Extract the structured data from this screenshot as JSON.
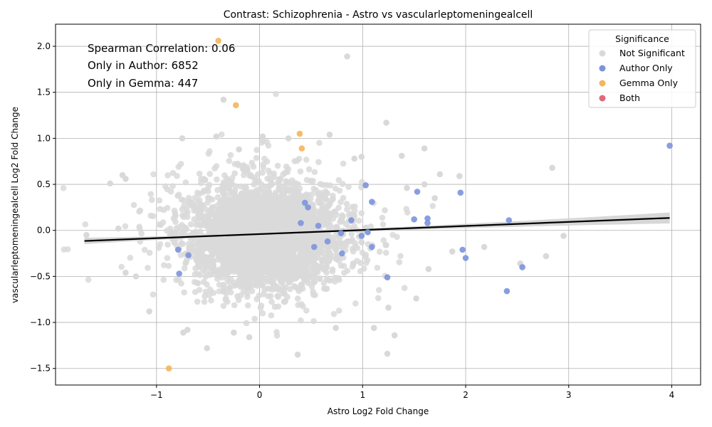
{
  "chart_data": {
    "type": "scatter",
    "title": "Contrast: Schizophrenia - Astro vs vascularleptomeningealcell",
    "xlabel": "Astro Log2 Fold Change",
    "ylabel": "vascularleptomeningealcell Log2 Fold Change",
    "xlim": [
      -1.98,
      4.28
    ],
    "ylim": [
      -1.68,
      2.24
    ],
    "xticks": [
      -1,
      0,
      1,
      2,
      3,
      4
    ],
    "yticks": [
      -1.5,
      -1.0,
      -0.5,
      0.0,
      0.5,
      1.0,
      1.5,
      2.0
    ],
    "xtick_labels": [
      "−1",
      "0",
      "1",
      "2",
      "3",
      "4"
    ],
    "ytick_labels": [
      "−1.5",
      "−1.0",
      "−0.5",
      "0.0",
      "0.5",
      "1.0",
      "1.5",
      "2.0"
    ],
    "grid": true,
    "annotations": [
      "Spearman Correlation: 0.06",
      "Only in Author: 6852",
      "Only in Gemma: 447"
    ],
    "legend": {
      "title": "Significance",
      "placement": "top-right",
      "entries": [
        {
          "label": "Not Significant",
          "color": "#d9d9d9"
        },
        {
          "label": "Author Only",
          "color": "#7b93dd"
        },
        {
          "label": "Gemma Only",
          "color": "#f5b55a"
        },
        {
          "label": "Both",
          "color": "#de6b7a"
        }
      ]
    },
    "regression": {
      "x": [
        -1.7,
        3.98
      ],
      "y": [
        -0.115,
        0.135
      ],
      "ci_halfwidth_ends": [
        0.035,
        0.06
      ],
      "ci_halfwidth_center": 0.012,
      "color": "#000000",
      "band_color": "#d3d3d3"
    },
    "series": [
      {
        "name": "Author Only",
        "color": "#7b93dd",
        "points": [
          [
            3.98,
            0.92
          ],
          [
            2.42,
            0.11
          ],
          [
            2.4,
            -0.66
          ],
          [
            2.55,
            -0.4
          ],
          [
            1.97,
            -0.21
          ],
          [
            2.0,
            -0.3
          ],
          [
            1.95,
            0.41
          ],
          [
            1.63,
            0.13
          ],
          [
            1.63,
            0.08
          ],
          [
            1.53,
            0.42
          ],
          [
            1.5,
            0.12
          ],
          [
            1.24,
            -0.51
          ],
          [
            1.09,
            0.31
          ],
          [
            1.09,
            -0.18
          ],
          [
            1.03,
            0.49
          ],
          [
            1.05,
            -0.02
          ],
          [
            0.99,
            -0.06
          ],
          [
            0.89,
            0.11
          ],
          [
            0.8,
            -0.25
          ],
          [
            0.79,
            -0.03
          ],
          [
            0.66,
            -0.12
          ],
          [
            0.57,
            0.05
          ],
          [
            0.53,
            -0.18
          ],
          [
            0.47,
            0.25
          ],
          [
            0.44,
            0.3
          ],
          [
            0.4,
            0.08
          ],
          [
            -0.69,
            -0.27
          ],
          [
            -0.78,
            -0.47
          ],
          [
            -0.79,
            -0.21
          ]
        ]
      },
      {
        "name": "Gemma Only",
        "color": "#f5b55a",
        "points": [
          [
            -0.4,
            2.06
          ],
          [
            -0.23,
            1.36
          ],
          [
            0.39,
            1.05
          ],
          [
            0.41,
            0.89
          ],
          [
            -0.88,
            -1.5
          ]
        ]
      }
    ],
    "not_significant_outliers": [
      [
        0.85,
        1.89
      ],
      [
        -0.35,
        1.42
      ],
      [
        1.23,
        1.17
      ],
      [
        -0.75,
        1.0
      ],
      [
        -0.42,
        1.02
      ],
      [
        0.03,
        1.02
      ],
      [
        0.28,
        1.0
      ],
      [
        0.68,
        1.04
      ],
      [
        1.6,
        0.89
      ],
      [
        1.38,
        0.81
      ],
      [
        0.99,
        0.8
      ],
      [
        2.84,
        0.68
      ],
      [
        1.94,
        0.59
      ],
      [
        2.95,
        -0.06
      ],
      [
        2.18,
        -0.18
      ],
      [
        2.78,
        -0.28
      ],
      [
        2.53,
        -0.36
      ],
      [
        1.87,
        -0.23
      ],
      [
        1.25,
        -0.84
      ],
      [
        1.31,
        -1.14
      ],
      [
        1.24,
        -1.34
      ],
      [
        0.37,
        -1.35
      ],
      [
        -0.51,
        -1.28
      ],
      [
        -0.1,
        -1.16
      ],
      [
        -0.74,
        -1.11
      ],
      [
        -1.07,
        -0.88
      ],
      [
        -1.45,
        0.51
      ],
      [
        -1.33,
        0.6
      ],
      [
        -1.3,
        0.56
      ],
      [
        -1.68,
        -0.05
      ],
      [
        -1.37,
        0.02
      ],
      [
        -1.3,
        -0.46
      ],
      [
        -1.2,
        -0.5
      ],
      [
        0.74,
        -1.06
      ],
      [
        1.11,
        -1.06
      ],
      [
        -0.25,
        -1.11
      ],
      [
        -0.7,
        -1.08
      ],
      [
        0.92,
        0.78
      ],
      [
        1.75,
        0.61
      ],
      [
        1.64,
        -0.42
      ],
      [
        1.52,
        -0.74
      ],
      [
        -0.2,
        0.88
      ],
      [
        1.43,
        0.46
      ],
      [
        1.7,
        0.35
      ],
      [
        1.6,
        0.5
      ]
    ],
    "not_significant_cloud": {
      "center": [
        0.05,
        -0.06
      ],
      "sd": [
        0.36,
        0.27
      ],
      "count": 3200,
      "color": "#d9d9d9"
    }
  }
}
